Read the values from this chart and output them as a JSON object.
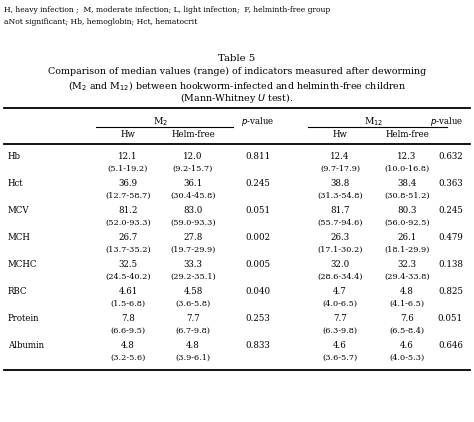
{
  "footnote1": "H, heavy infection ;  M, moderate infection; L, light infection;  F, helminth-free group",
  "footnote2": "aNot significant; Hb, hemoglobin; Hct, hematocrit",
  "title_line1": "Table 5",
  "title_line2": "Comparison of median values (range) of indicators measured after deworming",
  "title_line3": "(M$_2$ and M$_{12}$) between hookworm-infected and helminth-free children",
  "title_line4": "(Mann-Whitney $\\it{U}$ test).",
  "row_labels": [
    "Hb",
    "Hct",
    "MCV",
    "MCH",
    "MCHC",
    "RBC",
    "Protein",
    "Albumin"
  ],
  "data": [
    [
      "12.1",
      "12.0",
      "0.811",
      "12.4",
      "12.3",
      "0.632"
    ],
    [
      "(5.1-19.2)",
      "(9.2-15.7)",
      "",
      "(9.7-17.9)",
      "(10.0-16.8)",
      ""
    ],
    [
      "36.9",
      "36.1",
      "0.245",
      "38.8",
      "38.4",
      "0.363"
    ],
    [
      "(12.7-58.7)",
      "(30.4-45.8)",
      "",
      "(31.3-54.8)",
      "(30.8-51.2)",
      ""
    ],
    [
      "81.2",
      "83.0",
      "0.051",
      "81.7",
      "80.3",
      "0.245"
    ],
    [
      "(52.0-93.3)",
      "(59.0-93.3)",
      "",
      "(55.7-94.6)",
      "(56.0-92.5)",
      ""
    ],
    [
      "26.7",
      "27.8",
      "0.002",
      "26.3",
      "26.1",
      "0.479"
    ],
    [
      "(13.7-35.2)",
      "(19.7-29.9)",
      "",
      "(17.1-30.2)",
      "(18.1-29.9)",
      ""
    ],
    [
      "32.5",
      "33.3",
      "0.005",
      "32.0",
      "32.3",
      "0.138"
    ],
    [
      "(24.5-40.2)",
      "(29.2-35.1)",
      "",
      "(28.6-34.4)",
      "(29.4-33.8)",
      ""
    ],
    [
      "4.61",
      "4.58",
      "0.040",
      "4.7",
      "4.8",
      "0.825"
    ],
    [
      "(1.5-6.8)",
      "(3.6-5.8)",
      "",
      "(4.0-6.5)",
      "(4.1-6.5)",
      ""
    ],
    [
      "7.8",
      "7.7",
      "0.253",
      "7.7",
      "7.6",
      "0.051"
    ],
    [
      "(6.6-9.5)",
      "(6.7-9.8)",
      "",
      "(6.3-9.8)",
      "(6.5-8.4)",
      ""
    ],
    [
      "4.8",
      "4.8",
      "0.833",
      "4.6",
      "4.6",
      "0.646"
    ],
    [
      "(3.2-5.6)",
      "(3.9-6.1)",
      "",
      "(3.6-5.7)",
      "(4.0-5.3)",
      ""
    ]
  ],
  "background_color": "#ffffff",
  "footnote_fs": 5.5,
  "title_fs": 6.8,
  "data_fs": 6.2,
  "label_fs": 6.2
}
